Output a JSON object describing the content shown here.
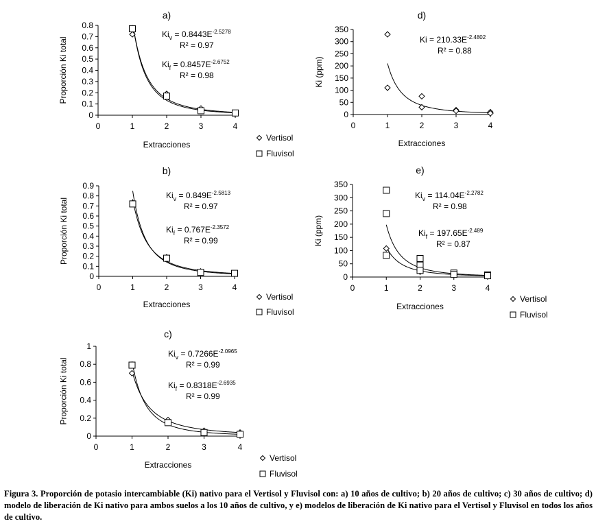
{
  "caption": "Figura 3. Proporción de potasio intercambiable (Ki) nativo para el Vertisol y Fluvisol con: a) 10 años de cultivo; b) 20 años de cultivo; c) 30 años de cultivo;  d) modelo de liberación de Ki nativo para ambos suelos a los 10 años de cultivo, y e) modelos de liberación de Ki nativo para el Vertisol y Fluvisol en todos los años de cultivo.",
  "colors": {
    "ink": "#000000",
    "background": "#ffffff"
  },
  "chart_data": [
    {
      "id": "a",
      "type": "scatter",
      "title": "a)",
      "xlabel": "Extracciones",
      "ylabel": "Proporción Ki total",
      "xlim": [
        0,
        4
      ],
      "ylim": [
        0,
        0.8
      ],
      "yticks": [
        0,
        0.1,
        0.2,
        0.3,
        0.4,
        0.5,
        0.6,
        0.7,
        0.8
      ],
      "series": [
        {
          "name": "Vertisol",
          "marker": "diamond",
          "x": [
            1,
            2,
            3,
            4
          ],
          "y": [
            0.72,
            0.19,
            0.06,
            0.02
          ]
        },
        {
          "name": "Fluvisol",
          "marker": "square",
          "x": [
            1,
            2,
            3,
            4
          ],
          "y": [
            0.77,
            0.17,
            0.04,
            0.02
          ]
        }
      ],
      "fits": [
        {
          "a": 0.8443,
          "b": 2.5278
        },
        {
          "a": 0.8457,
          "b": 2.6752
        }
      ],
      "annotations": [
        {
          "label_main": "Ki",
          "label_sub": "v",
          "eq": " = 0.8443E",
          "exp": "-2.5278",
          "r2": "R² = 0.97"
        },
        {
          "label_main": "Ki",
          "label_sub": "f",
          "eq": " = 0.8457E",
          "exp": "-2.6752",
          "r2": "R² = 0.98"
        }
      ],
      "legend": [
        "Vertisol",
        "Fluvisol"
      ]
    },
    {
      "id": "b",
      "type": "scatter",
      "title": "b)",
      "xlabel": "Extracciones",
      "ylabel": "Proporción Ki total",
      "xlim": [
        0,
        4
      ],
      "ylim": [
        0,
        0.9
      ],
      "yticks": [
        0,
        0.1,
        0.2,
        0.3,
        0.4,
        0.5,
        0.6,
        0.7,
        0.8,
        0.9
      ],
      "series": [
        {
          "name": "Vertisol",
          "marker": "diamond",
          "x": [
            1,
            2,
            3,
            4
          ],
          "y": [
            0.73,
            0.19,
            0.05,
            0.03
          ]
        },
        {
          "name": "Fluvisol",
          "marker": "square",
          "x": [
            1,
            2,
            3,
            4
          ],
          "y": [
            0.72,
            0.18,
            0.04,
            0.03
          ]
        }
      ],
      "fits": [
        {
          "a": 0.849,
          "b": 2.5813
        },
        {
          "a": 0.767,
          "b": 2.3572
        }
      ],
      "annotations": [
        {
          "label_main": "Ki",
          "label_sub": "v",
          "eq": " = 0.849E",
          "exp": "-2.5813",
          "r2": "R² = 0.97"
        },
        {
          "label_main": "Ki",
          "label_sub": "f",
          "eq": " = 0.767E",
          "exp": "-2.3572",
          "r2": "R² = 0.99"
        }
      ],
      "legend": [
        "Vertisol",
        "Fluvisol"
      ]
    },
    {
      "id": "c",
      "type": "scatter",
      "title": "c)",
      "xlabel": "Extracciones",
      "ylabel": "Proporción Ki total",
      "xlim": [
        0,
        4
      ],
      "ylim": [
        0,
        1
      ],
      "yticks": [
        0,
        0.2,
        0.4,
        0.6,
        0.8,
        1
      ],
      "series": [
        {
          "name": "Vertisol",
          "marker": "diamond",
          "x": [
            1,
            2,
            3,
            4
          ],
          "y": [
            0.7,
            0.18,
            0.06,
            0.04
          ]
        },
        {
          "name": "Fluvisol",
          "marker": "square",
          "x": [
            1,
            2,
            3,
            4
          ],
          "y": [
            0.79,
            0.15,
            0.04,
            0.02
          ]
        }
      ],
      "fits": [
        {
          "a": 0.7266,
          "b": 2.0965
        },
        {
          "a": 0.8318,
          "b": 2.6935
        }
      ],
      "annotations": [
        {
          "label_main": "Ki",
          "label_sub": "v",
          "eq": " = 0.7266E",
          "exp": "-2.0965",
          "r2": "R² = 0.99"
        },
        {
          "label_main": "Ki",
          "label_sub": "f",
          "eq": " = 0.8318E",
          "exp": "-2.6935",
          "r2": "R² = 0.99"
        }
      ],
      "legend": [
        "Vertisol",
        "Fluvisol"
      ]
    },
    {
      "id": "d",
      "type": "scatter",
      "title": "d)",
      "xlabel": "Extracciones",
      "ylabel": "Ki (ppm)",
      "xlim": [
        0,
        4
      ],
      "ylim": [
        0,
        350
      ],
      "yticks": [
        0,
        50,
        100,
        150,
        200,
        250,
        300,
        350
      ],
      "series": [
        {
          "name": "Ki",
          "marker": "diamond",
          "x": [
            1,
            1,
            2,
            2,
            3,
            3,
            4,
            4
          ],
          "y": [
            330,
            110,
            75,
            30,
            18,
            15,
            10,
            5
          ]
        }
      ],
      "fits": [
        {
          "a": 210.33,
          "b": 2.4802
        }
      ],
      "annotations": [
        {
          "label_main": "Ki",
          "label_sub": "",
          "eq": " = 210.33E",
          "exp": "-2.4802",
          "r2": "R² = 0.88"
        }
      ],
      "legend": []
    },
    {
      "id": "e",
      "type": "scatter",
      "title": "e)",
      "xlabel": "Extracciones",
      "ylabel": "Ki (ppm)",
      "xlim": [
        0,
        4
      ],
      "ylim": [
        0,
        350
      ],
      "yticks": [
        0,
        50,
        100,
        150,
        200,
        250,
        300,
        350
      ],
      "series": [
        {
          "name": "Vertisol",
          "marker": "diamond",
          "x": [
            1,
            2,
            3,
            4
          ],
          "y": [
            108,
            20,
            8,
            5
          ]
        },
        {
          "name": "Fluvisol",
          "marker": "square",
          "x": [
            1,
            1,
            1,
            2,
            2,
            2,
            3,
            3,
            4,
            4
          ],
          "y": [
            328,
            240,
            82,
            70,
            45,
            25,
            15,
            10,
            8,
            5
          ]
        }
      ],
      "fits": [
        {
          "a": 114.04,
          "b": 2.2782
        },
        {
          "a": 197.65,
          "b": 2.489
        }
      ],
      "annotations": [
        {
          "label_main": "Ki",
          "label_sub": "v",
          "eq": " = 114.04E",
          "exp": "-2.2782",
          "r2": "R² = 0.98"
        },
        {
          "label_main": "Ki",
          "label_sub": "f",
          "eq": " = 197.65E",
          "exp": "-2.489",
          "r2": "R² = 0.87"
        }
      ],
      "legend": [
        "Vertisol",
        "Fluvisol"
      ]
    }
  ]
}
